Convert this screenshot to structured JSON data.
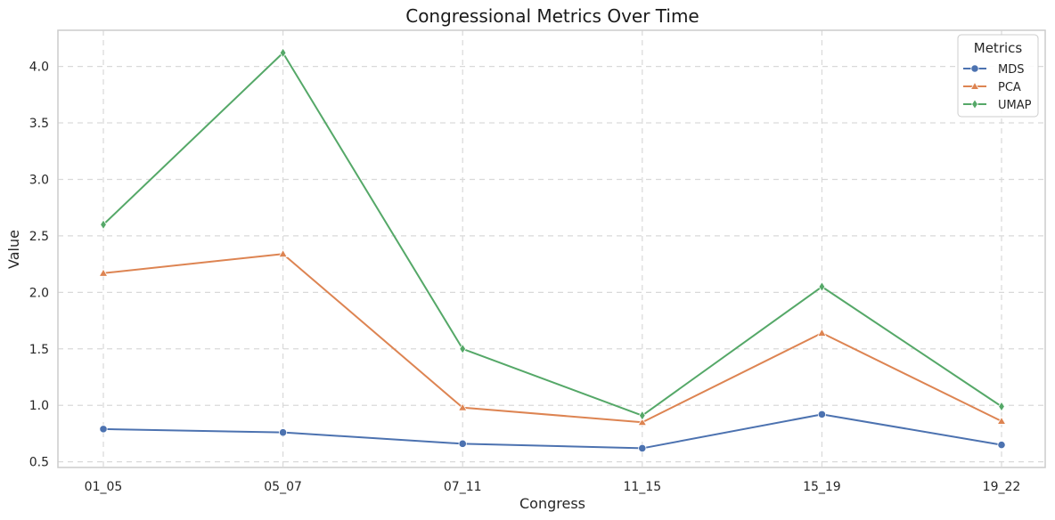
{
  "chart_data": {
    "type": "line",
    "title": "Congressional Metrics Over Time",
    "xlabel": "Congress",
    "ylabel": "Value",
    "categories": [
      "01_05",
      "05_07",
      "07_11",
      "11_15",
      "15_19",
      "19_22"
    ],
    "yticks": [
      0.5,
      1.0,
      1.5,
      2.0,
      2.5,
      3.0,
      3.5,
      4.0
    ],
    "ytick_labels": [
      "0.5",
      "1.0",
      "1.5",
      "2.0",
      "2.5",
      "3.0",
      "3.5",
      "4.0"
    ],
    "ylim": [
      0.45,
      4.32
    ],
    "grid": true,
    "legend": {
      "title": "Metrics",
      "placement": "top-right"
    },
    "series": [
      {
        "name": "MDS",
        "color": "#4c72b0",
        "marker": "circle",
        "values": [
          0.79,
          0.76,
          0.66,
          0.62,
          0.92,
          0.65
        ]
      },
      {
        "name": "PCA",
        "color": "#dd8452",
        "marker": "triangle",
        "values": [
          2.17,
          2.34,
          0.98,
          0.85,
          1.64,
          0.86
        ]
      },
      {
        "name": "UMAP",
        "color": "#55a868",
        "marker": "diamond",
        "values": [
          2.6,
          4.12,
          1.5,
          0.91,
          2.05,
          0.99
        ]
      }
    ]
  }
}
